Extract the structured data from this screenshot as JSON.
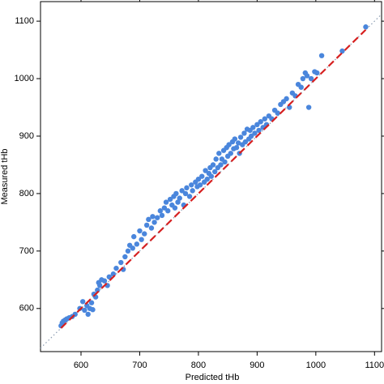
{
  "chart_data": {
    "type": "scatter",
    "x_label": "Predicted tHb",
    "y_label": "Measured tHb",
    "color": "#4a86dc",
    "x": [
      566,
      568,
      570,
      573,
      576,
      580,
      585,
      590,
      598,
      603,
      606,
      610,
      612,
      615,
      618,
      620,
      622,
      625,
      628,
      630,
      632,
      635,
      640,
      645,
      648,
      655,
      660,
      668,
      672,
      675,
      680,
      683,
      688,
      690,
      695,
      700,
      703,
      708,
      712,
      715,
      720,
      722,
      725,
      730,
      735,
      738,
      742,
      745,
      748,
      752,
      755,
      758,
      760,
      762,
      765,
      768,
      772,
      775,
      778,
      780,
      785,
      788,
      790,
      795,
      798,
      800,
      803,
      806,
      810,
      812,
      815,
      818,
      820,
      822,
      825,
      828,
      830,
      833,
      835,
      838,
      840,
      843,
      845,
      848,
      850,
      852,
      855,
      858,
      860,
      862,
      865,
      868,
      870,
      872,
      875,
      878,
      880,
      883,
      886,
      888,
      890,
      893,
      896,
      900,
      903,
      906,
      910,
      913,
      916,
      920,
      925,
      930,
      935,
      940,
      945,
      950,
      955,
      960,
      965,
      970,
      975,
      978,
      982,
      985,
      988,
      992,
      998,
      1002,
      1010,
      1045,
      1085
    ],
    "values": [
      570,
      575,
      578,
      580,
      582,
      584,
      586,
      590,
      600,
      612,
      597,
      605,
      590,
      600,
      610,
      598,
      625,
      620,
      632,
      645,
      640,
      650,
      648,
      640,
      655,
      660,
      670,
      680,
      668,
      690,
      700,
      710,
      705,
      725,
      712,
      735,
      720,
      730,
      745,
      755,
      740,
      760,
      750,
      758,
      770,
      762,
      775,
      785,
      770,
      790,
      780,
      795,
      775,
      800,
      785,
      792,
      805,
      780,
      800,
      810,
      795,
      815,
      805,
      820,
      812,
      825,
      815,
      830,
      820,
      840,
      825,
      835,
      845,
      830,
      850,
      838,
      860,
      845,
      870,
      850,
      860,
      875,
      855,
      880,
      865,
      885,
      870,
      890,
      878,
      895,
      880,
      888,
      870,
      898,
      885,
      905,
      890,
      912,
      895,
      910,
      900,
      915,
      905,
      920,
      910,
      925,
      915,
      930,
      920,
      935,
      930,
      945,
      940,
      955,
      960,
      965,
      950,
      975,
      970,
      990,
      985,
      1000,
      1010,
      1005,
      950,
      1000,
      1012,
      1010,
      1040,
      1048,
      1090
    ],
    "xlim": [
      531,
      1112
    ],
    "ylim": [
      525,
      1134
    ],
    "xticks": [
      600,
      700,
      800,
      900,
      1000,
      1100
    ],
    "yticks": [
      600,
      700,
      800,
      900,
      1000,
      1100
    ],
    "grid": false
  }
}
